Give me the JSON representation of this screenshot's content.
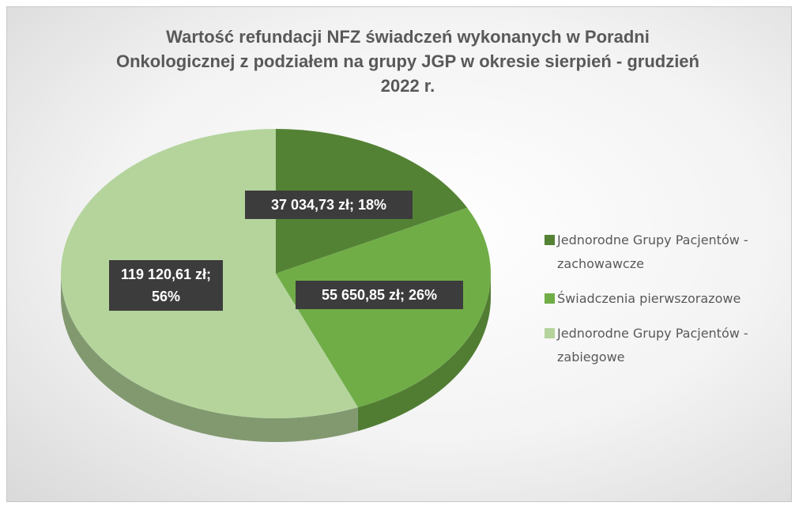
{
  "chart_data": {
    "type": "pie3d",
    "title": "Wartość refundacji NFZ świadczeń wykonanych w Poradni Onkologicznej z podziałem  na grupy JGP w okresie sierpień - grudzień 2022 r.",
    "categories": [
      "Jednorodne Grupy Pacjentów - zachowawcze",
      "Świadczenia pierwszorazowe",
      "Jednorodne Grupy Pacjentów - zabiegowe"
    ],
    "values": [
      37034.73,
      55650.85,
      119120.61
    ],
    "value_labels": [
      "37 034,73 zł; 18%",
      "55 650,85 zł; 26%",
      "119 120,61 zł; 56%"
    ],
    "colors": [
      "#548235",
      "#70ad47",
      "#b4d49c"
    ],
    "legend": "right"
  }
}
